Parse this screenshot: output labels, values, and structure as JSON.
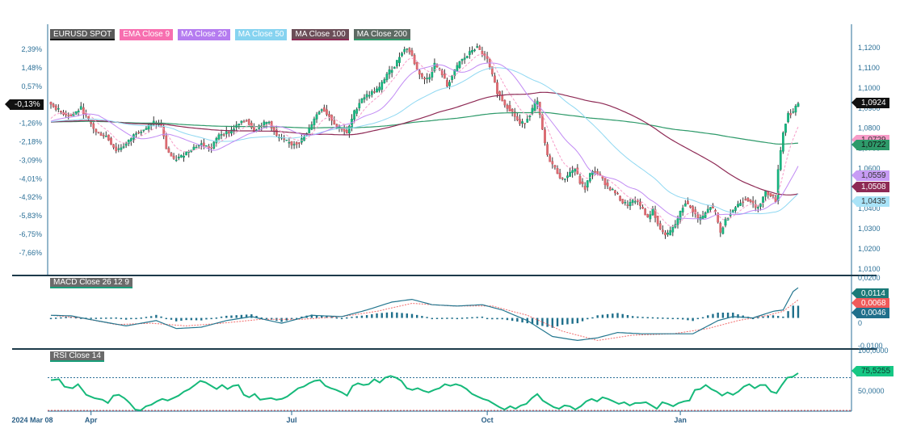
{
  "chart_data": [
    {
      "type": "candlestick",
      "title": "EURUSD SPOT",
      "legend": [
        {
          "label": "EURUSD SPOT",
          "color": "#5a5a5a",
          "underline": "#111111"
        },
        {
          "label": "EMA Close 9",
          "color": "#f76fb0",
          "underline": "#f76fb0"
        },
        {
          "label": "MA Close 20",
          "color": "#b57cf0",
          "underline": "#b57cf0"
        },
        {
          "label": "MA Close 50",
          "color": "#86d3f0",
          "underline": "#86d3f0"
        },
        {
          "label": "MA Close 100",
          "color": "#6b4e58",
          "underline": "#8e2a55"
        },
        {
          "label": "MA Close 200",
          "color": "#5d6a63",
          "underline": "#2e9a6a"
        }
      ],
      "left_axis_ticks": [
        "2,39%",
        "1,48%",
        "0,57%",
        "-0,35%",
        "-1,26%",
        "-2,18%",
        "-3,09%",
        "-4,01%",
        "-4,92%",
        "-5,83%",
        "-6,75%",
        "-7,66%"
      ],
      "right_axis_ticks": [
        "1,1200",
        "1,1100",
        "1,1000",
        "1,0900",
        "1,0800",
        "1,0700",
        "1,0600",
        "1,0500",
        "1,0400",
        "1,0300",
        "1,0200",
        "1,0100"
      ],
      "ylim": [
        1.0095,
        1.1245
      ],
      "current_pct_tag": "-0,13%",
      "value_tags": [
        {
          "label": "1,0924",
          "value": 1.0924,
          "bg": "#111111",
          "fg": "#ffffff"
        },
        {
          "label": "1,0729",
          "value": 1.074,
          "bg": "#f79cc8",
          "fg": "#333333"
        },
        {
          "label": "1,0722",
          "value": 1.0716,
          "bg": "#2e9a6a",
          "fg": "#111111"
        },
        {
          "label": "1,0559",
          "value": 1.0565,
          "bg": "#c79cf5",
          "fg": "#333333"
        },
        {
          "label": "1,0508",
          "value": 1.0508,
          "bg": "#8e2a55",
          "fg": "#ffffff"
        },
        {
          "label": "1,0435",
          "value": 1.0435,
          "bg": "#a9e3f7",
          "fg": "#333333"
        }
      ],
      "close_anchors": [
        [
          0,
          1.092
        ],
        [
          4,
          1.088
        ],
        [
          8,
          1.086
        ],
        [
          12,
          1.09
        ],
        [
          15,
          1.084
        ],
        [
          18,
          1.078
        ],
        [
          22,
          1.076
        ],
        [
          26,
          1.069
        ],
        [
          30,
          1.072
        ],
        [
          34,
          1.078
        ],
        [
          38,
          1.08
        ],
        [
          41,
          1.083
        ],
        [
          44,
          1.081
        ],
        [
          46,
          1.07
        ],
        [
          49,
          1.064
        ],
        [
          52,
          1.066
        ],
        [
          56,
          1.07
        ],
        [
          60,
          1.072
        ],
        [
          64,
          1.07
        ],
        [
          67,
          1.077
        ],
        [
          71,
          1.078
        ],
        [
          75,
          1.082
        ],
        [
          78,
          1.084
        ],
        [
          81,
          1.079
        ],
        [
          84,
          1.082
        ],
        [
          87,
          1.083
        ],
        [
          90,
          1.076
        ],
        [
          93,
          1.074
        ],
        [
          96,
          1.072
        ],
        [
          99,
          1.073
        ],
        [
          102,
          1.077
        ],
        [
          105,
          1.085
        ],
        [
          108,
          1.09
        ],
        [
          111,
          1.086
        ],
        [
          114,
          1.081
        ],
        [
          116,
          1.08
        ],
        [
          118,
          1.077
        ],
        [
          121,
          1.088
        ],
        [
          124,
          1.095
        ],
        [
          127,
          1.097
        ],
        [
          131,
          1.1
        ],
        [
          134,
          1.107
        ],
        [
          137,
          1.111
        ],
        [
          140,
          1.118
        ],
        [
          142,
          1.12
        ],
        [
          144,
          1.116
        ],
        [
          146,
          1.109
        ],
        [
          149,
          1.104
        ],
        [
          151,
          1.106
        ],
        [
          153,
          1.112
        ],
        [
          156,
          1.107
        ],
        [
          158,
          1.101
        ],
        [
          160,
          1.106
        ],
        [
          163,
          1.113
        ],
        [
          166,
          1.116
        ],
        [
          168,
          1.119
        ],
        [
          170,
          1.12
        ],
        [
          172,
          1.117
        ],
        [
          174,
          1.114
        ],
        [
          176,
          1.106
        ],
        [
          178,
          1.098
        ],
        [
          181,
          1.092
        ],
        [
          184,
          1.088
        ],
        [
          187,
          1.082
        ],
        [
          189,
          1.083
        ],
        [
          191,
          1.087
        ],
        [
          193,
          1.092
        ],
        [
          194,
          1.093
        ],
        [
          196,
          1.079
        ],
        [
          198,
          1.066
        ],
        [
          201,
          1.06
        ],
        [
          204,
          1.054
        ],
        [
          207,
          1.058
        ],
        [
          209,
          1.06
        ],
        [
          211,
          1.053
        ],
        [
          213,
          1.05
        ],
        [
          215,
          1.057
        ],
        [
          217,
          1.059
        ],
        [
          219,
          1.056
        ],
        [
          222,
          1.051
        ],
        [
          225,
          1.048
        ],
        [
          228,
          1.043
        ],
        [
          230,
          1.042
        ],
        [
          233,
          1.044
        ],
        [
          236,
          1.04
        ],
        [
          238,
          1.035
        ],
        [
          240,
          1.04
        ],
        [
          242,
          1.032
        ],
        [
          244,
          1.028
        ],
        [
          246,
          1.027
        ],
        [
          249,
          1.032
        ],
        [
          251,
          1.038
        ],
        [
          253,
          1.043
        ],
        [
          256,
          1.039
        ],
        [
          258,
          1.035
        ],
        [
          260,
          1.036
        ],
        [
          263,
          1.041
        ],
        [
          265,
          1.038
        ],
        [
          267,
          1.028
        ],
        [
          269,
          1.034
        ],
        [
          271,
          1.038
        ],
        [
          274,
          1.042
        ],
        [
          277,
          1.045
        ],
        [
          279,
          1.044
        ],
        [
          281,
          1.04
        ],
        [
          283,
          1.043
        ],
        [
          285,
          1.048
        ],
        [
          287,
          1.047
        ],
        [
          289,
          1.044
        ],
        [
          290,
          1.06
        ],
        [
          292,
          1.078
        ],
        [
          294,
          1.087
        ],
        [
          296,
          1.088
        ],
        [
          298,
          1.0924
        ]
      ],
      "n_bars": 299
    },
    {
      "type": "line",
      "title": "MACD Close 26 12 9",
      "series": [
        {
          "name": "MACD",
          "color": "#23768f"
        },
        {
          "name": "Signal",
          "color": "#f26d6d"
        },
        {
          "name": "Histogram",
          "color": "#1f6f8b"
        }
      ],
      "ylim": [
        -0.0105,
        0.0145
      ],
      "right_axis_ticks": [
        "0,0200",
        "0",
        "-0,0100"
      ],
      "value_tags": [
        {
          "label": "0,0114",
          "value": 0.0114,
          "bg": "#1a7a78",
          "fg": "#ffffff"
        },
        {
          "label": "0,0068",
          "value": 0.0068,
          "bg": "#f05a5a",
          "fg": "#ffffff"
        },
        {
          "label": "0,0046",
          "value": 0.0046,
          "bg": "#1f6f8b",
          "fg": "#ffffff"
        }
      ],
      "macd_anchors": [
        [
          0,
          0.001
        ],
        [
          8,
          0.0008
        ],
        [
          18,
          -0.001
        ],
        [
          30,
          -0.003
        ],
        [
          42,
          -0.001
        ],
        [
          50,
          -0.004
        ],
        [
          60,
          -0.0035
        ],
        [
          70,
          -0.001
        ],
        [
          80,
          0.0005
        ],
        [
          92,
          -0.002
        ],
        [
          104,
          0.001
        ],
        [
          116,
          0.0005
        ],
        [
          126,
          0.003
        ],
        [
          136,
          0.006
        ],
        [
          144,
          0.007
        ],
        [
          152,
          0.005
        ],
        [
          162,
          0.0045
        ],
        [
          172,
          0.005
        ],
        [
          180,
          0.003
        ],
        [
          190,
          -0.001
        ],
        [
          200,
          -0.007
        ],
        [
          210,
          -0.0085
        ],
        [
          218,
          -0.0075
        ],
        [
          226,
          -0.0055
        ],
        [
          236,
          -0.006
        ],
        [
          248,
          -0.006
        ],
        [
          256,
          -0.006
        ],
        [
          266,
          -0.001
        ],
        [
          272,
          0.0005
        ],
        [
          280,
          0.0
        ],
        [
          288,
          0.0025
        ],
        [
          292,
          0.003
        ],
        [
          296,
          0.01
        ],
        [
          298,
          0.0114
        ]
      ],
      "signal_anchors": [
        [
          0,
          0.001
        ],
        [
          12,
          0.0
        ],
        [
          26,
          -0.0025
        ],
        [
          40,
          -0.002
        ],
        [
          54,
          -0.003
        ],
        [
          68,
          -0.002
        ],
        [
          84,
          -0.0005
        ],
        [
          100,
          -0.0005
        ],
        [
          116,
          0.0005
        ],
        [
          130,
          0.0025
        ],
        [
          144,
          0.0055
        ],
        [
          160,
          0.0045
        ],
        [
          176,
          0.0045
        ],
        [
          190,
          0.001
        ],
        [
          204,
          -0.005
        ],
        [
          218,
          -0.0085
        ],
        [
          232,
          -0.0065
        ],
        [
          248,
          -0.006
        ],
        [
          262,
          -0.004
        ],
        [
          274,
          -0.001
        ],
        [
          286,
          0.001
        ],
        [
          292,
          0.0025
        ],
        [
          298,
          0.0068
        ]
      ]
    },
    {
      "type": "line",
      "title": "RSI Close 14",
      "series": [
        {
          "name": "RSI",
          "color": "#16b97a"
        }
      ],
      "ylim": [
        29,
        104
      ],
      "right_axis_ticks": [
        "100,0000",
        "50,0000"
      ],
      "overbought": 70,
      "oversold": 30,
      "value_tags": [
        {
          "label": "75,5255",
          "value": 75.5255,
          "bg": "#16c784",
          "fg": "#0d3b2e"
        }
      ],
      "rsi_anchors": [
        [
          0,
          67
        ],
        [
          3,
          68
        ],
        [
          5,
          59
        ],
        [
          8,
          57
        ],
        [
          10,
          62
        ],
        [
          13,
          49
        ],
        [
          16,
          45
        ],
        [
          19,
          43
        ],
        [
          21,
          39
        ],
        [
          23,
          48
        ],
        [
          25,
          49
        ],
        [
          27,
          45
        ],
        [
          29,
          39
        ],
        [
          31,
          31
        ],
        [
          33,
          30
        ],
        [
          35,
          35
        ],
        [
          37,
          37
        ],
        [
          39,
          41
        ],
        [
          41,
          44
        ],
        [
          43,
          42
        ],
        [
          45,
          45
        ],
        [
          47,
          48
        ],
        [
          49,
          53
        ],
        [
          51,
          56
        ],
        [
          53,
          61
        ],
        [
          55,
          66
        ],
        [
          57,
          64
        ],
        [
          59,
          60
        ],
        [
          61,
          56
        ],
        [
          63,
          61
        ],
        [
          65,
          56
        ],
        [
          67,
          60
        ],
        [
          69,
          61
        ],
        [
          71,
          49
        ],
        [
          73,
          46
        ],
        [
          75,
          50
        ],
        [
          77,
          43
        ],
        [
          79,
          44
        ],
        [
          81,
          45
        ],
        [
          83,
          43
        ],
        [
          85,
          44
        ],
        [
          87,
          47
        ],
        [
          89,
          52
        ],
        [
          91,
          57
        ],
        [
          93,
          59
        ],
        [
          95,
          63
        ],
        [
          97,
          66
        ],
        [
          99,
          67
        ],
        [
          101,
          60
        ],
        [
          103,
          57
        ],
        [
          105,
          55
        ],
        [
          107,
          52
        ],
        [
          109,
          48
        ],
        [
          111,
          60
        ],
        [
          113,
          63
        ],
        [
          115,
          61
        ],
        [
          117,
          62
        ],
        [
          119,
          68
        ],
        [
          121,
          64
        ],
        [
          123,
          70
        ],
        [
          125,
          72
        ],
        [
          127,
          70
        ],
        [
          129,
          66
        ],
        [
          131,
          57
        ],
        [
          133,
          55
        ],
        [
          135,
          57
        ],
        [
          137,
          54
        ],
        [
          139,
          52
        ],
        [
          141,
          55
        ],
        [
          143,
          57
        ],
        [
          145,
          62
        ],
        [
          147,
          60
        ],
        [
          149,
          62
        ],
        [
          151,
          60
        ],
        [
          153,
          56
        ],
        [
          155,
          50
        ],
        [
          157,
          47
        ],
        [
          159,
          44
        ],
        [
          161,
          42
        ],
        [
          163,
          38
        ],
        [
          165,
          34
        ],
        [
          167,
          31
        ],
        [
          169,
          35
        ],
        [
          171,
          32
        ],
        [
          173,
          36
        ],
        [
          175,
          38
        ],
        [
          177,
          45
        ],
        [
          179,
          50
        ],
        [
          181,
          42
        ],
        [
          183,
          38
        ],
        [
          185,
          34
        ],
        [
          187,
          32
        ],
        [
          189,
          36
        ],
        [
          191,
          35
        ],
        [
          193,
          31
        ],
        [
          195,
          35
        ],
        [
          197,
          41
        ],
        [
          199,
          44
        ],
        [
          201,
          41
        ],
        [
          203,
          46
        ],
        [
          205,
          44
        ],
        [
          207,
          41
        ],
        [
          209,
          38
        ],
        [
          211,
          40
        ],
        [
          213,
          36
        ],
        [
          215,
          39
        ],
        [
          217,
          39
        ],
        [
          219,
          40
        ],
        [
          221,
          36
        ],
        [
          223,
          32
        ],
        [
          225,
          40
        ],
        [
          227,
          38
        ],
        [
          229,
          35
        ],
        [
          231,
          39
        ],
        [
          233,
          41
        ],
        [
          235,
          42
        ],
        [
          237,
          55
        ],
        [
          239,
          56
        ],
        [
          241,
          61
        ],
        [
          243,
          56
        ],
        [
          245,
          53
        ],
        [
          247,
          48
        ],
        [
          249,
          52
        ],
        [
          251,
          49
        ],
        [
          253,
          53
        ],
        [
          255,
          59
        ],
        [
          257,
          62
        ],
        [
          259,
          57
        ],
        [
          261,
          61
        ],
        [
          263,
          61
        ],
        [
          265,
          53
        ],
        [
          267,
          51
        ],
        [
          269,
          61
        ],
        [
          271,
          70
        ],
        [
          273,
          71
        ],
        [
          275,
          75.5
        ]
      ]
    }
  ],
  "x_axis": {
    "labels": [
      {
        "label": "2024 Mar 08",
        "bar": -1
      },
      {
        "label": "Apr",
        "bar": 16
      },
      {
        "label": "Jul",
        "bar": 96
      },
      {
        "label": "Oct",
        "bar": 174
      },
      {
        "label": "Jan",
        "bar": 251
      }
    ]
  },
  "colors": {
    "axis": "#2a6f97",
    "separator": "#1d3a4a",
    "up_candle": "#17b983",
    "down_candle": "#e06b72",
    "wick": "#222222"
  }
}
